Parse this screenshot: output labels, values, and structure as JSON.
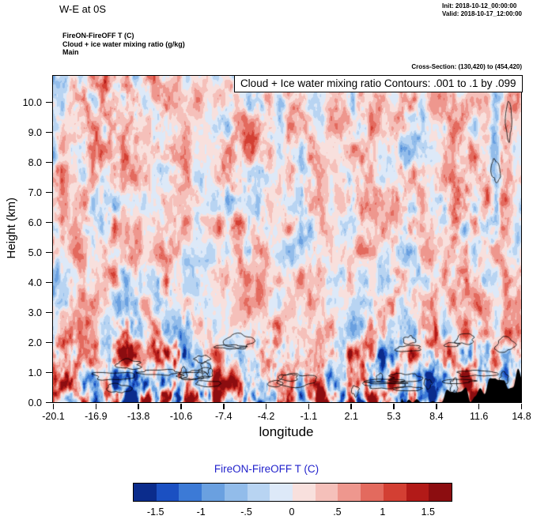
{
  "header": {
    "title": "W-E at 0S",
    "init": "Init: 2018-10-12_00:00:00",
    "valid": "Valid: 2018-10-17_12:00:00",
    "field_line1": "FireON-FireOFF T  (C)",
    "field_line2": "Cloud + ice water mixing ratio  (g/kg)",
    "field_line3": "Main",
    "cross_section": "Cross-Section: (130,420) to (454,420)"
  },
  "plot": {
    "annotation": "Cloud + Ice water mixing ratio Contours: .001 to .1 by .099",
    "xlabel": "longitude",
    "ylabel": "Height (km)"
  },
  "chart_data": {
    "type": "heatmap",
    "title": "W-E at 0S",
    "subtitle": "FireON-FireOFF T (C) vertical cross-section with Cloud + Ice water mixing ratio (g/kg) contour overlay",
    "xlabel": "longitude",
    "ylabel": "Height (km)",
    "x_tick_labels": [
      "-20.1",
      "-16.9",
      "-13.8",
      "-10.6",
      "-7.4",
      "-4.2",
      "-1.1",
      "2.1",
      "5.3",
      "8.4",
      "11.6",
      "14.8"
    ],
    "y_tick_labels": [
      "0.0",
      "1.0",
      "2.0",
      "3.0",
      "4.0",
      "5.0",
      "6.0",
      "7.0",
      "8.0",
      "9.0",
      "10.0"
    ],
    "xlim": [
      -20.1,
      14.8
    ],
    "ylim": [
      0.0,
      10.9
    ],
    "grid": false,
    "legend_position": "bottom-colorbar",
    "colorbar": {
      "title": "FireON-FireOFF T  (C)",
      "title_color": "#2222cc",
      "units": "C",
      "tick_labels": [
        "-1.5",
        "-1",
        "-.5",
        "0",
        ".5",
        "1",
        "1.5"
      ],
      "tick_values": [
        -1.5,
        -1,
        -0.5,
        0,
        0.5,
        1,
        1.5
      ],
      "levels": [
        -1.75,
        -1.5,
        -1.25,
        -1.0,
        -0.75,
        -0.5,
        -0.25,
        0.0,
        0.25,
        0.5,
        0.75,
        1.0,
        1.25,
        1.5,
        1.75
      ],
      "colors": [
        "#0b2c8c",
        "#1b50c2",
        "#3c7ad6",
        "#6aa0e0",
        "#92bcea",
        "#b8d4f2",
        "#dde9f8",
        "#f8e0dd",
        "#f5c0ba",
        "#ee978e",
        "#e36a5e",
        "#d33f33",
        "#b21a18",
        "#8c0d10"
      ]
    },
    "overlay_contours": {
      "field": "Cloud + Ice water mixing ratio",
      "units": "g/kg",
      "levels": [
        0.001,
        0.1
      ],
      "interval": 0.099,
      "color": "#000000"
    },
    "field_summary": "Diverging temperature-difference anomalies (pale pink/blue mottling aloft, strongest saturated red/blue cells below ~2.5 km); black cloud contour outlines near 0.5-2 km; black terrain silhouette rising at the lower-right edge."
  }
}
